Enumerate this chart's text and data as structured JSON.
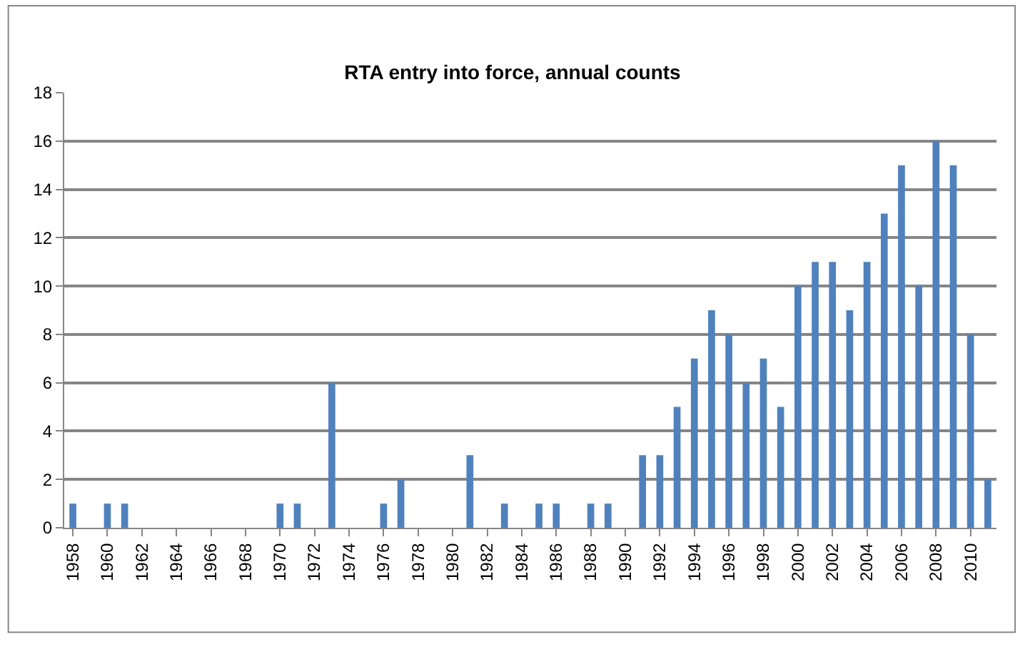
{
  "chart_data": {
    "type": "bar",
    "title": "RTA entry into force, annual counts",
    "categories": [
      "1958",
      null,
      "1960",
      null,
      "1962",
      null,
      "1964",
      null,
      "1966",
      null,
      "1968",
      null,
      "1970",
      null,
      "1972",
      null,
      "1974",
      null,
      "1976",
      null,
      "1978",
      null,
      "1980",
      null,
      "1982",
      null,
      "1984",
      null,
      "1986",
      null,
      "1988",
      null,
      "1990",
      null,
      "1992",
      null,
      "1994",
      null,
      "1996",
      null,
      "1998",
      null,
      "2000",
      null,
      "2002",
      null,
      "2004",
      null,
      "2006",
      null,
      "2008",
      null,
      "2010",
      null
    ],
    "values": [
      1,
      0,
      1,
      1,
      0,
      0,
      0,
      0,
      0,
      0,
      0,
      0,
      1,
      1,
      0,
      6,
      0,
      0,
      1,
      2,
      0,
      0,
      0,
      3,
      0,
      1,
      0,
      1,
      1,
      0,
      1,
      1,
      0,
      3,
      3,
      5,
      7,
      9,
      8,
      6,
      7,
      5,
      10,
      11,
      11,
      9,
      11,
      13,
      15,
      10,
      16,
      15,
      8,
      2
    ],
    "color": "#4f81bd",
    "ylim": [
      0,
      18
    ],
    "yticks": [
      0,
      2,
      4,
      6,
      8,
      10,
      12,
      14,
      16,
      18
    ],
    "grid": "y",
    "legend": false
  }
}
